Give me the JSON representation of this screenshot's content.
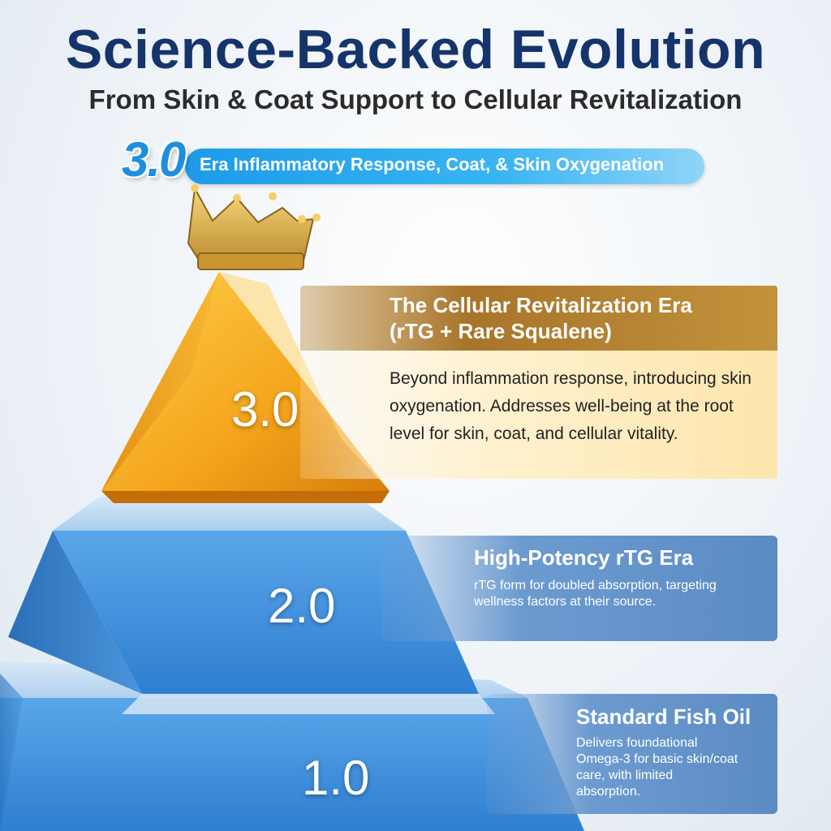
{
  "header": {
    "title": "Science-Backed Evolution",
    "subtitle": "From Skin & Coat Support to Cellular Revitalization"
  },
  "era_banner": {
    "badge": "3.0",
    "text": "Era Inflammatory Response, Coat, & Skin Oxygenation"
  },
  "tiers": [
    {
      "number": "3.0",
      "title_line1": "The Cellular Revitalization Era",
      "title_line2": "(rTG + Rare Squalene)",
      "description": "Beyond inflammation response, introducing skin oxygenation. Addresses well-being at the root level for skin, coat, and cellular vitality."
    },
    {
      "number": "2.0",
      "title": "High-Potency rTG Era",
      "description": "rTG form for doubled absorption, targeting wellness factors at their source."
    },
    {
      "number": "1.0",
      "title": "Standard Fish Oil",
      "description": "Delivers foundational Omega-3 for basic skin/coat care, with limited absorption."
    }
  ],
  "colors": {
    "title": "#15346b",
    "gold": "#b07c2e",
    "amber": "#f5a623",
    "blue": "#3a8ee0",
    "banner_blue": "#1e9be8"
  },
  "icons": [
    "crown-icon"
  ]
}
